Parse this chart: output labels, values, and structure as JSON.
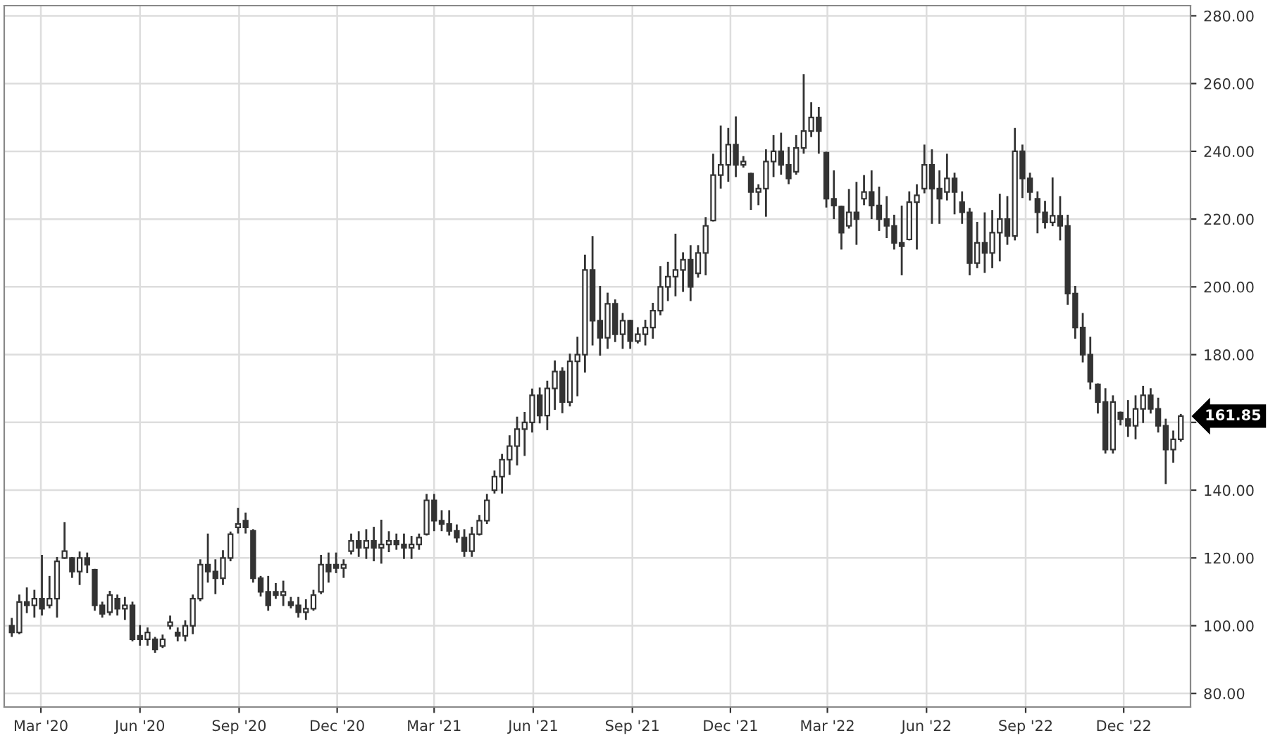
{
  "chart_data": {
    "type": "candlestick",
    "color": "#333333",
    "x": [
      "2020-02-03",
      "2020-02-10",
      "2020-02-17",
      "2020-02-24",
      "2020-03-02",
      "2020-03-09",
      "2020-03-16",
      "2020-03-23",
      "2020-03-30",
      "2020-04-06",
      "2020-04-13",
      "2020-04-20",
      "2020-04-27",
      "2020-05-04",
      "2020-05-11",
      "2020-05-18",
      "2020-05-25",
      "2020-06-01",
      "2020-06-08",
      "2020-06-15",
      "2020-06-22",
      "2020-06-29",
      "2020-07-06",
      "2020-07-13",
      "2020-07-20",
      "2020-07-27",
      "2020-08-03",
      "2020-08-10",
      "2020-08-17",
      "2020-08-24",
      "2020-08-31",
      "2020-09-07",
      "2020-09-14",
      "2020-09-21",
      "2020-09-28",
      "2020-10-05",
      "2020-10-12",
      "2020-10-19",
      "2020-10-26",
      "2020-11-02",
      "2020-11-09",
      "2020-11-16",
      "2020-11-23",
      "2020-11-30",
      "2020-12-07",
      "2020-12-14",
      "2020-12-21",
      "2020-12-28",
      "2021-01-04",
      "2021-01-11",
      "2021-01-18",
      "2021-01-25",
      "2021-02-01",
      "2021-02-08",
      "2021-02-15",
      "2021-02-22",
      "2021-03-01",
      "2021-03-08",
      "2021-03-15",
      "2021-03-22",
      "2021-03-29",
      "2021-04-05",
      "2021-04-12",
      "2021-04-19",
      "2021-04-26",
      "2021-05-03",
      "2021-05-10",
      "2021-05-17",
      "2021-05-24",
      "2021-05-31",
      "2021-06-07",
      "2021-06-14",
      "2021-06-21",
      "2021-06-28",
      "2021-07-05",
      "2021-07-12",
      "2021-07-19",
      "2021-07-26",
      "2021-08-02",
      "2021-08-09",
      "2021-08-16",
      "2021-08-23",
      "2021-08-30",
      "2021-09-06",
      "2021-09-13",
      "2021-09-20",
      "2021-09-27",
      "2021-10-04",
      "2021-10-11",
      "2021-10-18",
      "2021-10-25",
      "2021-11-01",
      "2021-11-08",
      "2021-11-15",
      "2021-11-22",
      "2021-11-29",
      "2021-12-06",
      "2021-12-13",
      "2021-12-20",
      "2021-12-27",
      "2022-01-03",
      "2022-01-10",
      "2022-01-17",
      "2022-01-24",
      "2022-01-31",
      "2022-02-07",
      "2022-02-14",
      "2022-02-21",
      "2022-02-28",
      "2022-03-07",
      "2022-03-14",
      "2022-03-21",
      "2022-03-28",
      "2022-04-04",
      "2022-04-11",
      "2022-04-18",
      "2022-04-25",
      "2022-05-02",
      "2022-05-09",
      "2022-05-16",
      "2022-05-23",
      "2022-05-30",
      "2022-06-06",
      "2022-06-13",
      "2022-06-20",
      "2022-06-27",
      "2022-07-04",
      "2022-07-11",
      "2022-07-18",
      "2022-07-25",
      "2022-08-01",
      "2022-08-08",
      "2022-08-15",
      "2022-08-22",
      "2022-08-29",
      "2022-09-05",
      "2022-09-12",
      "2022-09-19",
      "2022-09-26",
      "2022-10-03",
      "2022-10-10",
      "2022-10-17",
      "2022-10-24",
      "2022-10-31",
      "2022-11-07",
      "2022-11-14",
      "2022-11-21",
      "2022-11-28",
      "2022-12-05",
      "2022-12-12",
      "2022-12-19",
      "2022-12-26",
      "2023-01-02",
      "2023-01-09",
      "2023-01-16",
      "2023-01-23"
    ],
    "ohlc": [
      [
        100,
        102,
        97,
        98
      ],
      [
        98,
        108.9,
        97.8,
        107
      ],
      [
        107,
        111,
        104,
        106
      ],
      [
        106,
        110.3,
        102.7,
        108
      ],
      [
        108,
        120.6,
        103.3,
        105
      ],
      [
        106,
        114.4,
        105.4,
        108
      ],
      [
        108,
        120,
        102.7,
        119
      ],
      [
        120,
        130.3,
        120,
        122
      ],
      [
        120,
        120,
        114.4,
        116
      ],
      [
        116,
        121.6,
        112.3,
        120
      ],
      [
        120,
        121.3,
        115.8,
        118
      ],
      [
        116.5,
        116.5,
        104.7,
        106
      ],
      [
        106,
        106.8,
        102.7,
        103.5
      ],
      [
        104,
        110,
        103.3,
        109
      ],
      [
        108,
        108.9,
        103.3,
        105
      ],
      [
        105,
        108.2,
        102,
        106
      ],
      [
        106,
        106.8,
        95.7,
        96
      ],
      [
        97,
        99.9,
        94.4,
        96
      ],
      [
        96,
        99.2,
        94.4,
        98
      ],
      [
        96,
        96.4,
        92.3,
        93
      ],
      [
        94,
        97.1,
        93.7,
        96
      ],
      [
        100,
        102.7,
        99.2,
        101
      ],
      [
        98,
        99.2,
        95.7,
        97
      ],
      [
        97,
        101.3,
        95.7,
        100
      ],
      [
        100,
        108.9,
        97.8,
        108
      ],
      [
        108,
        119.3,
        107.5,
        118
      ],
      [
        118,
        126.9,
        113,
        116
      ],
      [
        116,
        119.3,
        109.6,
        114
      ],
      [
        114,
        122,
        112.3,
        120
      ],
      [
        120,
        127.5,
        119.3,
        127
      ],
      [
        129,
        134.5,
        127.5,
        130
      ],
      [
        131,
        133.1,
        127.5,
        129
      ],
      [
        128,
        128.2,
        113,
        114
      ],
      [
        114,
        114.4,
        108.9,
        110
      ],
      [
        110,
        114.4,
        104.7,
        106
      ],
      [
        110,
        112.3,
        108.2,
        109
      ],
      [
        109,
        113,
        106.1,
        110
      ],
      [
        107,
        108.2,
        105.4,
        106
      ],
      [
        106,
        108.2,
        102.7,
        104
      ],
      [
        104,
        107.5,
        102,
        105
      ],
      [
        105,
        110.3,
        104.7,
        109
      ],
      [
        110,
        120.6,
        109.6,
        118
      ],
      [
        118,
        121.3,
        113,
        116
      ],
      [
        118,
        121.3,
        115.8,
        117
      ],
      [
        117,
        119.3,
        114.4,
        118
      ],
      [
        122,
        126.9,
        121.3,
        125
      ],
      [
        125,
        127.6,
        120.6,
        123
      ],
      [
        123,
        128.2,
        120,
        125
      ],
      [
        125,
        128.9,
        119.3,
        123
      ],
      [
        123,
        131,
        118.6,
        124
      ],
      [
        124,
        127.6,
        122,
        125
      ],
      [
        125,
        126.9,
        122.7,
        124
      ],
      [
        124,
        126.9,
        120,
        123
      ],
      [
        123,
        126.2,
        120,
        124
      ],
      [
        124,
        126.9,
        122.7,
        126
      ],
      [
        127,
        138.6,
        126.9,
        137
      ],
      [
        137,
        138.6,
        128.2,
        131
      ],
      [
        131,
        133.8,
        128.2,
        130
      ],
      [
        130,
        133.8,
        126.9,
        128
      ],
      [
        128,
        129.6,
        124.8,
        126
      ],
      [
        126,
        128.2,
        120.6,
        122
      ],
      [
        122,
        128.9,
        120.6,
        127
      ],
      [
        127,
        132.4,
        126.9,
        131
      ],
      [
        131,
        138.6,
        130.3,
        137
      ],
      [
        140,
        145.5,
        139.3,
        144
      ],
      [
        144,
        150.4,
        139.3,
        149
      ],
      [
        149,
        155.9,
        144.8,
        153
      ],
      [
        153,
        161.4,
        147.6,
        158
      ],
      [
        158,
        162.8,
        150.4,
        160
      ],
      [
        160,
        169.7,
        157.3,
        168
      ],
      [
        168,
        170,
        160,
        162
      ],
      [
        162,
        172,
        158,
        170
      ],
      [
        170,
        178,
        164,
        175
      ],
      [
        175,
        176,
        163,
        166
      ],
      [
        166,
        180,
        165,
        178
      ],
      [
        178,
        185,
        168,
        180
      ],
      [
        180,
        209.2,
        175,
        205
      ],
      [
        205,
        214.7,
        183,
        190
      ],
      [
        190,
        200,
        180,
        185
      ],
      [
        185,
        198,
        182,
        195
      ],
      [
        195,
        196,
        184,
        186
      ],
      [
        186,
        192,
        182,
        190
      ],
      [
        190,
        190,
        182,
        184
      ],
      [
        184,
        187.8,
        183.6,
        186
      ],
      [
        186,
        190,
        183,
        188
      ],
      [
        188,
        195,
        185,
        193
      ],
      [
        193,
        205.8,
        191.9,
        200
      ],
      [
        200,
        207.1,
        196.1,
        203
      ],
      [
        203,
        215.4,
        197.5,
        205
      ],
      [
        205,
        209.9,
        198.8,
        208
      ],
      [
        208,
        212,
        196.1,
        200
      ],
      [
        204,
        212,
        203,
        210
      ],
      [
        210,
        220.3,
        203.7,
        218
      ],
      [
        219.6,
        239,
        219.6,
        233
      ],
      [
        233,
        247.3,
        229.3,
        236
      ],
      [
        236,
        246.6,
        231.3,
        242
      ],
      [
        242,
        250,
        232.7,
        236
      ],
      [
        236,
        238.3,
        235.5,
        237
      ],
      [
        233.4,
        233.4,
        223,
        228
      ],
      [
        228,
        230,
        224.4,
        229
      ],
      [
        229,
        240.3,
        221,
        237
      ],
      [
        237,
        244.5,
        232.7,
        240
      ],
      [
        240,
        245.2,
        233.4,
        236
      ],
      [
        236,
        241,
        230.6,
        232
      ],
      [
        234,
        244.5,
        233.4,
        241
      ],
      [
        241,
        262.5,
        239.6,
        246
      ],
      [
        246,
        254.2,
        244.5,
        250
      ],
      [
        250,
        252.8,
        239.6,
        246
      ],
      [
        239.6,
        239.6,
        223.7,
        226
      ],
      [
        226,
        234.1,
        220.3,
        224
      ],
      [
        223.7,
        223.7,
        211.3,
        216
      ],
      [
        218,
        228.6,
        217.5,
        222
      ],
      [
        222,
        230.7,
        212.7,
        220
      ],
      [
        226,
        232.7,
        224.4,
        228
      ],
      [
        228,
        234.1,
        220.3,
        224
      ],
      [
        224,
        229.3,
        216.8,
        220
      ],
      [
        220,
        226.5,
        214.7,
        218
      ],
      [
        218,
        221,
        211.3,
        213
      ],
      [
        213,
        223.7,
        203.7,
        212
      ],
      [
        214,
        227.9,
        214,
        225
      ],
      [
        225,
        230,
        211.3,
        227
      ],
      [
        229,
        241.7,
        227.9,
        236
      ],
      [
        236,
        240.3,
        218.9,
        229
      ],
      [
        229,
        234.1,
        218.9,
        226
      ],
      [
        228,
        239,
        225.8,
        232
      ],
      [
        232,
        233.4,
        221.7,
        228
      ],
      [
        225,
        227.9,
        218.9,
        222
      ],
      [
        222,
        223,
        203.7,
        207
      ],
      [
        207,
        218.9,
        205.8,
        213
      ],
      [
        213,
        221.7,
        204.4,
        210
      ],
      [
        210,
        222.4,
        205.8,
        216
      ],
      [
        216,
        227.2,
        207.8,
        220
      ],
      [
        220,
        226.5,
        212.7,
        215
      ],
      [
        215,
        246.6,
        214,
        240
      ],
      [
        240,
        241.7,
        226.5,
        232
      ],
      [
        232,
        233.4,
        225.8,
        228
      ],
      [
        226,
        227.9,
        216.1,
        222
      ],
      [
        222,
        225.1,
        217.5,
        219
      ],
      [
        219,
        232,
        218.2,
        221
      ],
      [
        221,
        226.5,
        214,
        218
      ],
      [
        218,
        221,
        195,
        198
      ],
      [
        198,
        200,
        185,
        188
      ],
      [
        188,
        192,
        178,
        180
      ],
      [
        180,
        185,
        170,
        172
      ],
      [
        171.2,
        171.2,
        162.9,
        166
      ],
      [
        166,
        169.8,
        151.1,
        152
      ],
      [
        152,
        167.7,
        151.1,
        166
      ],
      [
        162.9,
        162.9,
        159.4,
        161
      ],
      [
        161,
        166.3,
        156,
        159
      ],
      [
        159,
        167.7,
        155.3,
        164
      ],
      [
        164,
        170.5,
        160.1,
        168
      ],
      [
        168,
        169.8,
        162.9,
        164
      ],
      [
        164,
        167,
        157.3,
        159
      ],
      [
        159,
        160.8,
        142.1,
        152
      ],
      [
        152,
        157.3,
        148.4,
        155
      ],
      [
        155,
        162.2,
        154.6,
        161.85
      ]
    ],
    "xlim": [
      "2020-01-27",
      "2023-02-01"
    ],
    "xticks": [
      {
        "value": "2020-03-01",
        "label": "Mar '20"
      },
      {
        "value": "2020-06-01",
        "label": "Jun '20"
      },
      {
        "value": "2020-09-01",
        "label": "Sep '20"
      },
      {
        "value": "2020-12-01",
        "label": "Dec '20"
      },
      {
        "value": "2021-03-01",
        "label": "Mar '21"
      },
      {
        "value": "2021-06-01",
        "label": "Jun '21"
      },
      {
        "value": "2021-09-01",
        "label": "Sep '21"
      },
      {
        "value": "2021-12-01",
        "label": "Dec '21"
      },
      {
        "value": "2022-03-01",
        "label": "Mar '22"
      },
      {
        "value": "2022-06-01",
        "label": "Jun '22"
      },
      {
        "value": "2022-09-01",
        "label": "Sep '22"
      },
      {
        "value": "2022-12-01",
        "label": "Dec '22"
      }
    ],
    "ylim": [
      76,
      283
    ],
    "yticks": [
      {
        "value": 80,
        "label": "80.00"
      },
      {
        "value": 100,
        "label": "100.00"
      },
      {
        "value": 120,
        "label": "120.00"
      },
      {
        "value": 140,
        "label": "140.00"
      },
      {
        "value": 160,
        "label": null
      },
      {
        "value": 180,
        "label": "180.00"
      },
      {
        "value": 200,
        "label": "200.00"
      },
      {
        "value": 220,
        "label": "220.00"
      },
      {
        "value": 240,
        "label": "240.00"
      },
      {
        "value": 260,
        "label": "260.00"
      },
      {
        "value": 280,
        "label": "280.00"
      }
    ],
    "grid": true,
    "annotations": [
      {
        "text": "161.85",
        "x": "2023-01-23",
        "y": 161.85
      }
    ]
  }
}
